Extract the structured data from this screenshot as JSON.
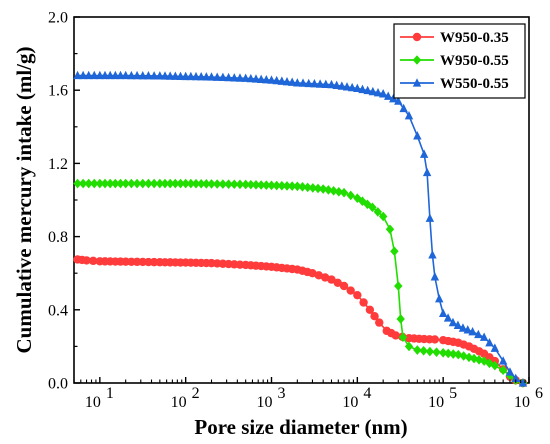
{
  "chart_data": {
    "type": "line",
    "title": "",
    "xlabel": "Pore size diameter (nm)",
    "ylabel": "Cumulative mercury intake (ml/g)",
    "xscale": "log",
    "xlim": [
      5,
      1000000
    ],
    "ylim": [
      0.0,
      2.0
    ],
    "grid": false,
    "legend_position": "top-right",
    "x_tick_values": [
      10,
      100,
      1000,
      10000,
      100000,
      1000000
    ],
    "x_tick_labels": [
      {
        "base": "10",
        "exp": "1"
      },
      {
        "base": "10",
        "exp": "2"
      },
      {
        "base": "10",
        "exp": "3"
      },
      {
        "base": "10",
        "exp": "4"
      },
      {
        "base": "10",
        "exp": "5"
      },
      {
        "base": "10",
        "exp": "6"
      }
    ],
    "y_ticks": [
      "0.0",
      "0.4",
      "0.8",
      "1.2",
      "1.6",
      "2.0"
    ],
    "series": [
      {
        "name": "W950-0.35",
        "color": "#ff3b3b",
        "marker": "circle",
        "points": [
          [
            5.5,
            0.675
          ],
          [
            7,
            0.67
          ],
          [
            10,
            0.665
          ],
          [
            20,
            0.663
          ],
          [
            50,
            0.66
          ],
          [
            100,
            0.658
          ],
          [
            200,
            0.655
          ],
          [
            500,
            0.645
          ],
          [
            1000,
            0.635
          ],
          [
            2000,
            0.62
          ],
          [
            3000,
            0.6
          ],
          [
            5000,
            0.565
          ],
          [
            7000,
            0.53
          ],
          [
            10000,
            0.48
          ],
          [
            14000,
            0.4
          ],
          [
            18000,
            0.33
          ],
          [
            22000,
            0.285
          ],
          [
            28000,
            0.26
          ],
          [
            40000,
            0.245
          ],
          [
            60000,
            0.24
          ],
          [
            80000,
            0.238
          ],
          [
            100000,
            0.234
          ],
          [
            150000,
            0.22
          ],
          [
            200000,
            0.2
          ],
          [
            300000,
            0.16
          ],
          [
            400000,
            0.12
          ],
          [
            500000,
            0.075
          ],
          [
            600000,
            0.035
          ],
          [
            700000,
            0.015
          ],
          [
            850000,
            0.0
          ]
        ]
      },
      {
        "name": "W950-0.55",
        "color": "#22dd00",
        "marker": "diamond",
        "points": [
          [
            5.5,
            1.09
          ],
          [
            10,
            1.09
          ],
          [
            20,
            1.09
          ],
          [
            50,
            1.09
          ],
          [
            100,
            1.09
          ],
          [
            200,
            1.088
          ],
          [
            500,
            1.085
          ],
          [
            1000,
            1.08
          ],
          [
            2000,
            1.075
          ],
          [
            4000,
            1.06
          ],
          [
            7000,
            1.04
          ],
          [
            10000,
            1.01
          ],
          [
            15000,
            0.96
          ],
          [
            20000,
            0.91
          ],
          [
            24000,
            0.84
          ],
          [
            27000,
            0.72
          ],
          [
            30000,
            0.53
          ],
          [
            32000,
            0.35
          ],
          [
            34000,
            0.25
          ],
          [
            40000,
            0.2
          ],
          [
            50000,
            0.18
          ],
          [
            70000,
            0.172
          ],
          [
            100000,
            0.165
          ],
          [
            150000,
            0.155
          ],
          [
            200000,
            0.14
          ],
          [
            300000,
            0.12
          ],
          [
            400000,
            0.095
          ],
          [
            500000,
            0.07
          ],
          [
            600000,
            0.04
          ],
          [
            700000,
            0.015
          ],
          [
            850000,
            0.0
          ]
        ]
      },
      {
        "name": "W550-0.55",
        "color": "#1f66d8",
        "marker": "triangle",
        "points": [
          [
            5.5,
            1.68
          ],
          [
            10,
            1.68
          ],
          [
            20,
            1.68
          ],
          [
            50,
            1.678
          ],
          [
            100,
            1.675
          ],
          [
            200,
            1.672
          ],
          [
            500,
            1.665
          ],
          [
            1000,
            1.655
          ],
          [
            2000,
            1.64
          ],
          [
            5000,
            1.63
          ],
          [
            10000,
            1.61
          ],
          [
            20000,
            1.58
          ],
          [
            30000,
            1.54
          ],
          [
            40000,
            1.46
          ],
          [
            50000,
            1.35
          ],
          [
            60000,
            1.25
          ],
          [
            65000,
            1.15
          ],
          [
            70000,
            0.9
          ],
          [
            75000,
            0.7
          ],
          [
            80000,
            0.58
          ],
          [
            90000,
            0.46
          ],
          [
            100000,
            0.38
          ],
          [
            130000,
            0.33
          ],
          [
            170000,
            0.3
          ],
          [
            220000,
            0.28
          ],
          [
            300000,
            0.25
          ],
          [
            400000,
            0.19
          ],
          [
            500000,
            0.12
          ],
          [
            600000,
            0.06
          ],
          [
            700000,
            0.025
          ],
          [
            850000,
            0.0
          ]
        ]
      }
    ]
  }
}
